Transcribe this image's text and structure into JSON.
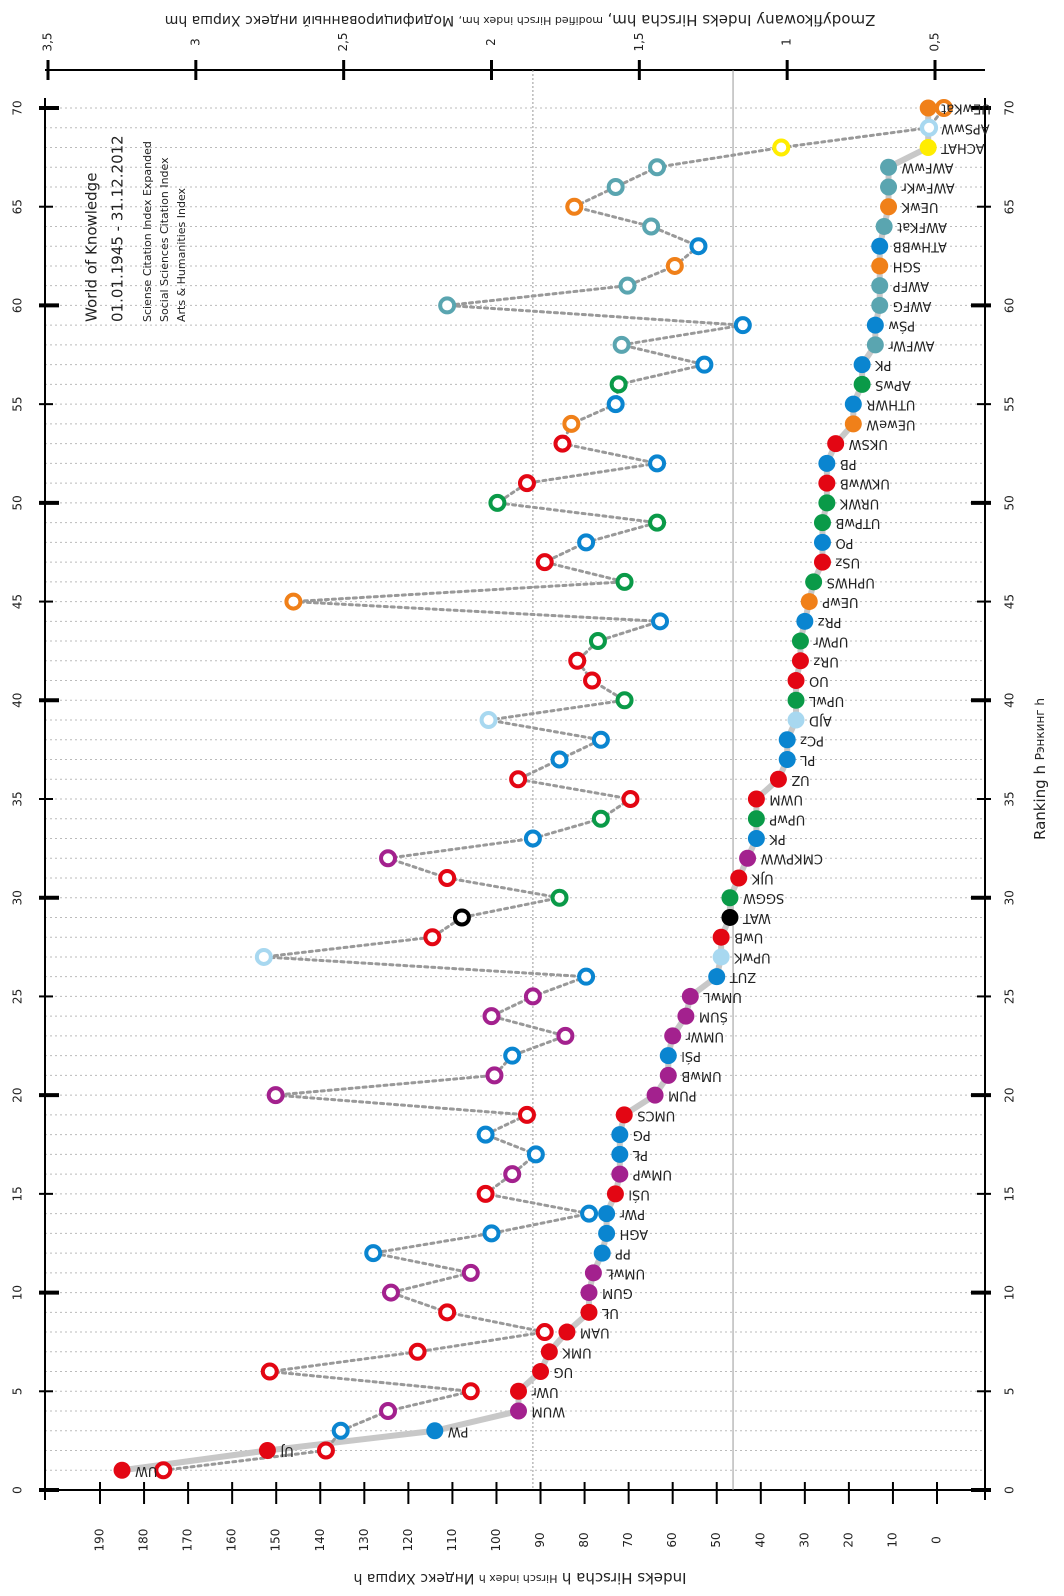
{
  "chart_data": {
    "type": "line",
    "annotations": [
      "World of Knowledge",
      "01.01.1945 - 31.12.2012",
      "Sciense Citation Index Expanded",
      "Social Sciences Citation Index",
      "Arts & Humanities Index"
    ],
    "xlabel": [
      "Ranking h",
      "Рэнкинг h"
    ],
    "ylabel": [
      "Indeks Hirscha h",
      "Hirsch index h",
      "Индекс Хирша h"
    ],
    "y2label": [
      "Zmodyfikowany Indeks Hirscha hm,",
      "modified Hirsch index hm,",
      "Модифицированный индекс Хирша hm"
    ],
    "x": [
      1,
      2,
      3,
      4,
      5,
      6,
      7,
      8,
      9,
      10,
      11,
      12,
      13,
      14,
      15,
      16,
      17,
      18,
      19,
      20,
      21,
      22,
      23,
      24,
      25,
      26,
      27,
      28,
      29,
      30,
      31,
      32,
      33,
      34,
      35,
      36,
      37,
      38,
      39,
      40,
      41,
      42,
      43,
      44,
      45,
      46,
      47,
      48,
      49,
      50,
      51,
      52,
      53,
      54,
      55,
      56,
      57,
      58,
      59,
      60,
      61,
      62,
      63,
      64,
      65,
      66,
      67,
      68,
      69,
      70
    ],
    "categories": [
      "UW",
      "UJ",
      "PW",
      "WUM",
      "UWr",
      "UG",
      "UMK",
      "UAM",
      "UŁ",
      "GUM",
      "UMwŁ",
      "PP",
      "AGH",
      "PWr",
      "UŚl",
      "UMwP",
      "PŁ",
      "PG",
      "UMCS",
      "PUM",
      "UMwB",
      "PŚl",
      "UMWr",
      "ŚUM",
      "UMwL",
      "ZUT",
      "UPwK",
      "UwB",
      "WAT",
      "SGGW",
      "UJK",
      "CMKPWW",
      "PK",
      "UPwP",
      "UWM",
      "UZ",
      "PL",
      "PCz",
      "AJD",
      "UPwL",
      "UO",
      "URz",
      "UPWr",
      "PRz",
      "UEwP",
      "UPHWS",
      "USz",
      "PO",
      "UTPwB",
      "URWK",
      "UKWwB",
      "PB",
      "UKSW",
      "UEweW",
      "UTHWR",
      "APwS",
      "PK",
      "AWFWr",
      "PŚw",
      "AWFG",
      "AWFP",
      "SGH",
      "ATHwBB",
      "AWFKat",
      "UEwK",
      "AWFwKr",
      "AWFwW",
      "ACHAT",
      "APSwW",
      "UEwKat"
    ],
    "colors": [
      "#e30613",
      "#e30613",
      "#0a85d0",
      "#a3218e",
      "#e30613",
      "#e30613",
      "#e30613",
      "#e30613",
      "#e30613",
      "#a3218e",
      "#a3218e",
      "#0a85d0",
      "#0a85d0",
      "#0a85d0",
      "#e30613",
      "#a3218e",
      "#0a85d0",
      "#0a85d0",
      "#e30613",
      "#a3218e",
      "#a3218e",
      "#0a85d0",
      "#a3218e",
      "#a3218e",
      "#a3218e",
      "#0a85d0",
      "#a8d8f0",
      "#e30613",
      "#000000",
      "#0a9a48",
      "#e30613",
      "#a3218e",
      "#0a85d0",
      "#0a9a48",
      "#e30613",
      "#e30613",
      "#0a85d0",
      "#0a85d0",
      "#a8d8f0",
      "#0a9a48",
      "#e30613",
      "#e30613",
      "#0a9a48",
      "#0a85d0",
      "#f08019",
      "#0a9a48",
      "#e30613",
      "#0a85d0",
      "#0a9a48",
      "#0a9a48",
      "#e30613",
      "#0a85d0",
      "#e30613",
      "#f08019",
      "#0a85d0",
      "#0a9a48",
      "#0a85d0",
      "#5aa5b0",
      "#0a85d0",
      "#5aa5b0",
      "#5aa5b0",
      "#f08019",
      "#0a85d0",
      "#5aa5b0",
      "#f08019",
      "#5aa5b0",
      "#5aa5b0",
      "#ffed00",
      "#a8d8f0",
      "#f08019"
    ],
    "series": [
      {
        "values": [
          185,
          152,
          114,
          95,
          95,
          90,
          88,
          84,
          79,
          79,
          78,
          76,
          75,
          75,
          73,
          72,
          72,
          72,
          71,
          64,
          61,
          61,
          60,
          57,
          56,
          50,
          49,
          49,
          47,
          47,
          45,
          43,
          41,
          41,
          41,
          36,
          34,
          34,
          32,
          32,
          32,
          31,
          31,
          30,
          29,
          28,
          26,
          26,
          26,
          25,
          25,
          25,
          23,
          19,
          19,
          17,
          17,
          14,
          14,
          13,
          13,
          13,
          13,
          12,
          11,
          11,
          11,
          2,
          2,
          2
        ],
        "color": "#c8c8c8"
      },
      {
        "values": [
          3.11,
          2.56,
          2.51,
          2.35,
          2.07,
          2.75,
          2.25,
          1.82,
          2.15,
          2.34,
          2.07,
          2.4,
          2.0,
          1.67,
          2.02,
          1.93,
          1.85,
          2.02,
          1.88,
          2.73,
          1.99,
          1.93,
          1.75,
          2.0,
          1.86,
          1.68,
          2.77,
          2.2,
          2.1,
          1.77,
          2.15,
          2.35,
          1.86,
          1.63,
          1.53,
          1.91,
          1.77,
          1.63,
          2.01,
          1.55,
          1.66,
          1.71,
          1.64,
          1.43,
          2.67,
          1.55,
          1.82,
          1.68,
          1.44,
          1.98,
          1.88,
          1.44,
          1.76,
          1.73,
          1.58,
          1.57,
          1.28,
          1.56,
          1.15,
          2.15,
          1.54,
          1.38,
          1.3,
          1.46,
          1.72,
          1.58,
          1.44,
          1.02,
          0.52,
          0.47
        ],
        "color": "#999999",
        "axis": "y2"
      }
    ],
    "reference_lines": {
      "y": 46.3,
      "y2": 1.86
    },
    "xlim": [
      0,
      70
    ],
    "xticks": [
      0,
      5,
      10,
      15,
      20,
      25,
      30,
      35,
      40,
      45,
      50,
      55,
      60,
      65,
      70
    ],
    "ylim": [
      0,
      190
    ],
    "yticks": [
      0,
      10,
      20,
      30,
      40,
      50,
      60,
      70,
      80,
      90,
      100,
      110,
      120,
      130,
      140,
      150,
      160,
      170,
      180,
      190
    ],
    "y2lim": [
      0.5,
      3.5
    ],
    "y2ticks": [
      {
        "value": 0.5,
        "label": "0,5"
      },
      1,
      {
        "value": 1.5,
        "label": "1,5"
      },
      2,
      {
        "value": 2.5,
        "label": "2,5"
      },
      3,
      {
        "value": 3.5,
        "label": "3,5"
      }
    ],
    "grid": true
  }
}
